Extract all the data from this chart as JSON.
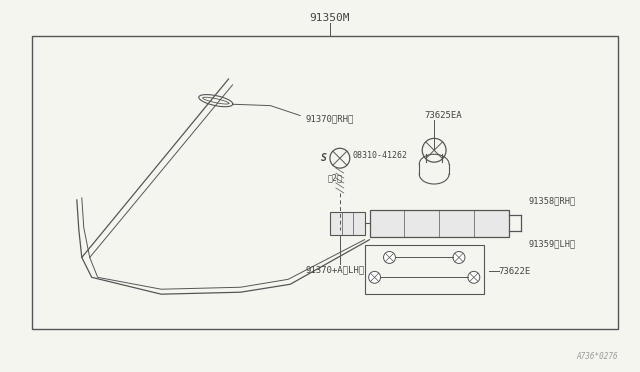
{
  "bg_color": "#f5f5f0",
  "box_color": "#555555",
  "line_color": "#555555",
  "title_label": "91350M",
  "watermark": "A736*0276",
  "label_91370rh": "91370〈RH〉",
  "label_08310": "08310-41262",
  "label_08310_qty": "〈2〉",
  "label_73625ea": "73625EA",
  "label_91358": "91358〈RH〉",
  "label_91359": "91359〈LH〉",
  "label_91370lh": "91370+A〈LH〉",
  "label_73622e": "73622E"
}
